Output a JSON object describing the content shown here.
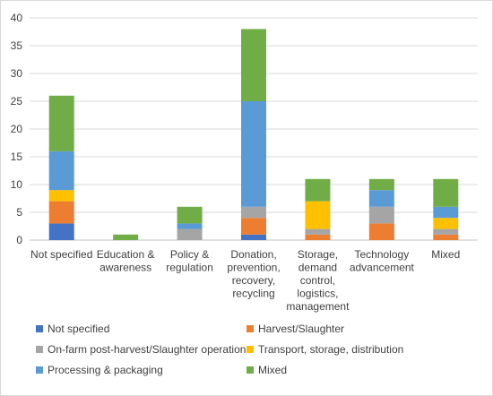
{
  "chart_data": {
    "type": "bar",
    "stacked": true,
    "title": "",
    "xlabel": "",
    "ylabel": "",
    "ylim": [
      0,
      40
    ],
    "yticks": [
      0,
      5,
      10,
      15,
      20,
      25,
      30,
      35,
      40
    ],
    "grid": true,
    "legend_position": "bottom",
    "categories": [
      [
        "Not specified"
      ],
      [
        "Education &",
        "awareness"
      ],
      [
        "Policy &",
        "regulation"
      ],
      [
        "Donation,",
        "prevention,",
        "recovery,",
        "recycling"
      ],
      [
        "Storage,",
        "demand",
        "control,",
        "logistics,",
        "management"
      ],
      [
        "Technology",
        "advancement"
      ],
      [
        "Mixed"
      ]
    ],
    "series": [
      {
        "name": "Not specified",
        "color": "#4472C4",
        "values": [
          3,
          0,
          0,
          1,
          0,
          0,
          0
        ]
      },
      {
        "name": "Harvest/Slaughter",
        "color": "#ED7D31",
        "values": [
          4,
          0,
          0,
          3,
          1,
          3,
          1
        ]
      },
      {
        "name": "On-farm post-harvest/Slaughter operations",
        "color": "#A5A5A5",
        "values": [
          0,
          0,
          2,
          2,
          1,
          3,
          1
        ]
      },
      {
        "name": "Transport, storage, distribution",
        "color": "#FFC000",
        "values": [
          2,
          0,
          0,
          0,
          5,
          0,
          2
        ]
      },
      {
        "name": "Processing & packaging",
        "color": "#5B9BD5",
        "values": [
          7,
          0,
          1,
          19,
          0,
          3,
          2
        ]
      },
      {
        "name": "Mixed",
        "color": "#70AD47",
        "values": [
          10,
          1,
          3,
          13,
          4,
          2,
          5
        ]
      }
    ]
  }
}
